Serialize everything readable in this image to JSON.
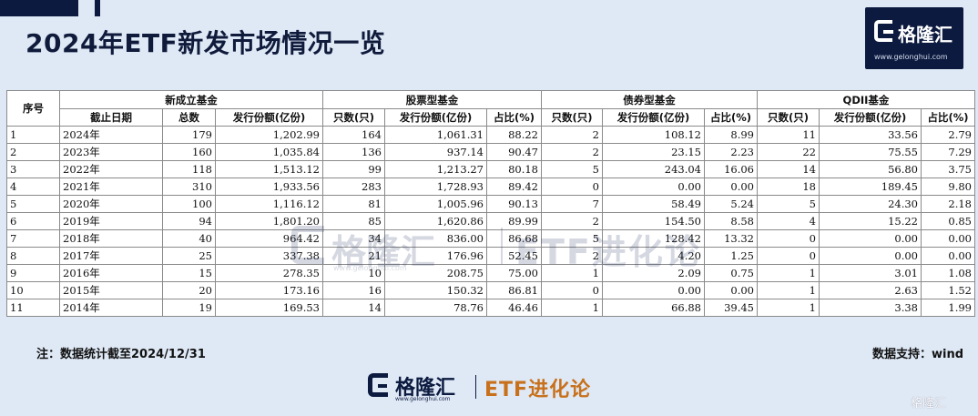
{
  "title": "2024年ETF新发市场情况一览",
  "logo": {
    "brand": "格隆汇",
    "url": "www.gelonghui.com"
  },
  "table": {
    "group_headers": [
      "序号",
      "新成立基金",
      "股票型基金",
      "债券型基金",
      "QDII基金"
    ],
    "sub_headers": [
      "截止日期",
      "总数",
      "发行份额(亿份)",
      "只数(只)",
      "发行份额(亿份)",
      "占比(%)",
      "只数(只)",
      "发行份额(亿份)",
      "占比(%)",
      "只数(只)",
      "发行份额(亿份)",
      "占比(%)"
    ],
    "rows": [
      [
        "1",
        "2024年",
        "179",
        "1,202.99",
        "164",
        "1,061.31",
        "88.22",
        "2",
        "108.12",
        "8.99",
        "11",
        "33.56",
        "2.79"
      ],
      [
        "2",
        "2023年",
        "160",
        "1,035.84",
        "136",
        "937.14",
        "90.47",
        "2",
        "23.15",
        "2.23",
        "22",
        "75.55",
        "7.29"
      ],
      [
        "3",
        "2022年",
        "118",
        "1,513.12",
        "99",
        "1,213.27",
        "80.18",
        "5",
        "243.04",
        "16.06",
        "14",
        "56.80",
        "3.75"
      ],
      [
        "4",
        "2021年",
        "310",
        "1,933.56",
        "283",
        "1,728.93",
        "89.42",
        "0",
        "0.00",
        "0.00",
        "18",
        "189.45",
        "9.80"
      ],
      [
        "5",
        "2020年",
        "100",
        "1,116.12",
        "81",
        "1,005.96",
        "90.13",
        "7",
        "58.49",
        "5.24",
        "5",
        "24.30",
        "2.18"
      ],
      [
        "6",
        "2019年",
        "94",
        "1,801.20",
        "85",
        "1,620.86",
        "89.99",
        "2",
        "154.50",
        "8.58",
        "4",
        "15.22",
        "0.85"
      ],
      [
        "7",
        "2018年",
        "40",
        "964.42",
        "34",
        "836.00",
        "86.68",
        "5",
        "128.42",
        "13.32",
        "0",
        "0.00",
        "0.00"
      ],
      [
        "8",
        "2017年",
        "25",
        "337.38",
        "21",
        "176.96",
        "52.45",
        "2",
        "4.20",
        "1.25",
        "0",
        "0.00",
        "0.00"
      ],
      [
        "9",
        "2016年",
        "15",
        "278.35",
        "10",
        "208.75",
        "75.00",
        "1",
        "2.09",
        "0.75",
        "1",
        "3.01",
        "1.08"
      ],
      [
        "10",
        "2015年",
        "20",
        "173.16",
        "16",
        "150.32",
        "86.81",
        "0",
        "0.00",
        "0.00",
        "1",
        "2.63",
        "1.52"
      ],
      [
        "11",
        "2014年",
        "19",
        "169.53",
        "14",
        "78.76",
        "46.46",
        "1",
        "66.88",
        "39.45",
        "1",
        "3.38",
        "1.99"
      ]
    ]
  },
  "watermark": {
    "brand": "格隆汇",
    "url": "www.gelonghui.com",
    "etf": "ETF进化论"
  },
  "note": "注：数据统计截至2024/12/31",
  "source": "数据支持：wind",
  "footer": {
    "brand": "格隆汇",
    "url": "www.gelonghui.com",
    "etf": "ETF进化论"
  },
  "corner_watermark": "格隆汇"
}
